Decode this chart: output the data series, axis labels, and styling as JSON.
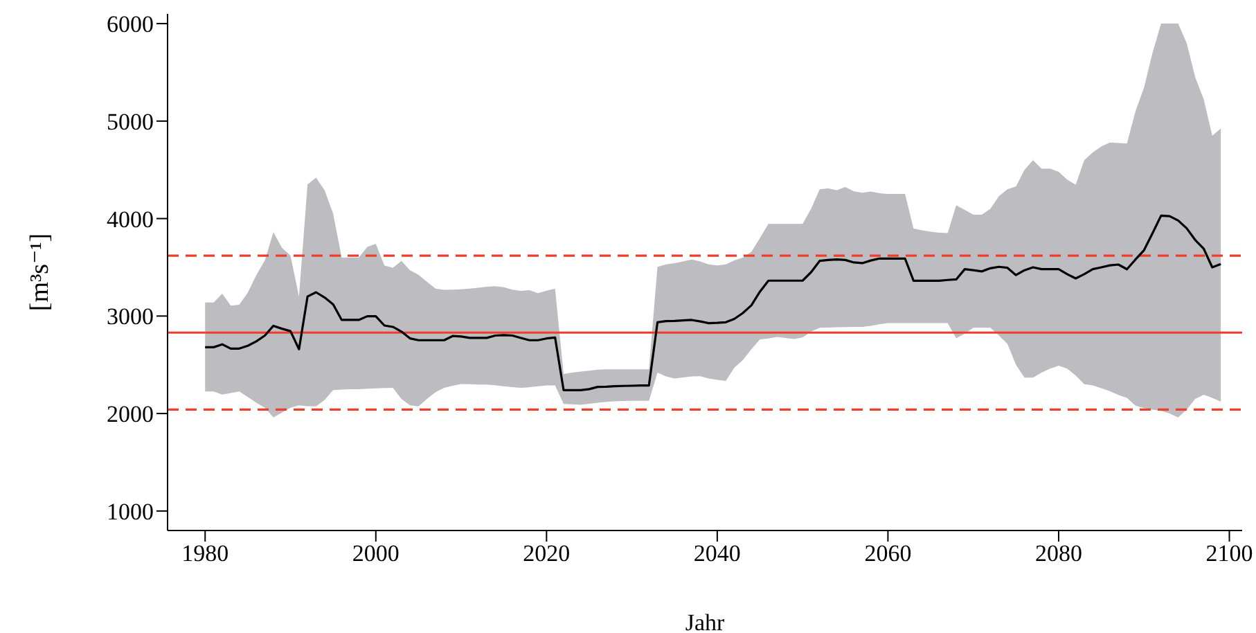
{
  "chart_data": {
    "type": "line",
    "xlabel": "Jahr",
    "ylabel": "[m³s⁻¹]",
    "x": [
      1980,
      1981,
      1982,
      1983,
      1984,
      1985,
      1986,
      1987,
      1988,
      1989,
      1990,
      1991,
      1992,
      1993,
      1994,
      1995,
      1996,
      1997,
      1998,
      1999,
      2000,
      2001,
      2002,
      2003,
      2004,
      2005,
      2006,
      2007,
      2008,
      2009,
      2010,
      2011,
      2012,
      2013,
      2014,
      2015,
      2016,
      2017,
      2018,
      2019,
      2020,
      2021,
      2022,
      2023,
      2024,
      2025,
      2026,
      2027,
      2028,
      2029,
      2030,
      2031,
      2032,
      2033,
      2034,
      2035,
      2036,
      2037,
      2038,
      2039,
      2040,
      2041,
      2042,
      2043,
      2044,
      2045,
      2046,
      2047,
      2048,
      2049,
      2050,
      2051,
      2052,
      2053,
      2054,
      2055,
      2056,
      2057,
      2058,
      2059,
      2060,
      2061,
      2062,
      2063,
      2064,
      2065,
      2066,
      2067,
      2068,
      2069,
      2070,
      2071,
      2072,
      2073,
      2074,
      2075,
      2076,
      2077,
      2078,
      2079,
      2080,
      2081,
      2082,
      2083,
      2084,
      2085,
      2086,
      2087,
      2088,
      2089,
      2090,
      2091,
      2092,
      2093,
      2094,
      2095,
      2096,
      2097,
      2098,
      2099
    ],
    "series": [
      {
        "color": "#000000",
        "values": [
          2680,
          2680,
          2710,
          2666,
          2666,
          2695,
          2740,
          2800,
          2900,
          2870,
          2845,
          2660,
          3200,
          3244,
          3190,
          3120,
          2960,
          2960,
          2960,
          2998,
          2998,
          2903,
          2889,
          2840,
          2771,
          2752,
          2752,
          2752,
          2752,
          2795,
          2790,
          2776,
          2776,
          2776,
          2800,
          2805,
          2800,
          2775,
          2752,
          2752,
          2770,
          2780,
          2240,
          2240,
          2240,
          2250,
          2273,
          2275,
          2280,
          2283,
          2285,
          2288,
          2288,
          2936,
          2948,
          2950,
          2955,
          2960,
          2945,
          2927,
          2930,
          2936,
          2970,
          3031,
          3110,
          3250,
          3363,
          3363,
          3363,
          3363,
          3363,
          3450,
          3566,
          3575,
          3580,
          3575,
          3550,
          3543,
          3570,
          3590,
          3590,
          3590,
          3590,
          3362,
          3362,
          3362,
          3362,
          3370,
          3376,
          3481,
          3470,
          3458,
          3490,
          3505,
          3495,
          3420,
          3470,
          3500,
          3481,
          3481,
          3481,
          3430,
          3386,
          3430,
          3481,
          3500,
          3520,
          3528,
          3480,
          3580,
          3675,
          3850,
          4030,
          4025,
          3980,
          3900,
          3780,
          3690,
          3500,
          3533
        ],
        "lower": [
          2226,
          2226,
          2195,
          2210,
          2226,
          2170,
          2110,
          2060,
          1960,
          2010,
          2060,
          2084,
          2075,
          2074,
          2140,
          2240,
          2245,
          2250,
          2250,
          2255,
          2258,
          2262,
          2264,
          2150,
          2084,
          2074,
          2150,
          2220,
          2264,
          2285,
          2302,
          2300,
          2298,
          2297,
          2290,
          2280,
          2270,
          2264,
          2270,
          2280,
          2288,
          2288,
          2098,
          2095,
          2090,
          2100,
          2110,
          2120,
          2125,
          2128,
          2130,
          2131,
          2131,
          2420,
          2380,
          2360,
          2370,
          2380,
          2382,
          2360,
          2345,
          2335,
          2470,
          2548,
          2660,
          2761,
          2770,
          2785,
          2775,
          2765,
          2780,
          2840,
          2880,
          2882,
          2885,
          2887,
          2888,
          2889,
          2900,
          2915,
          2927,
          2927,
          2927,
          2927,
          2927,
          2927,
          2927,
          2927,
          2771,
          2820,
          2880,
          2880,
          2880,
          2800,
          2714,
          2500,
          2368,
          2368,
          2420,
          2460,
          2490,
          2460,
          2390,
          2300,
          2288,
          2260,
          2230,
          2190,
          2160,
          2080,
          2055,
          2040,
          2027,
          2000,
          1960,
          2040,
          2150,
          2193,
          2160,
          2122
        ],
        "upper": [
          3140,
          3140,
          3230,
          3107,
          3116,
          3240,
          3420,
          3570,
          3860,
          3700,
          3620,
          3200,
          4350,
          4419,
          4290,
          4050,
          3600,
          3600,
          3600,
          3709,
          3742,
          3519,
          3495,
          3566,
          3470,
          3424,
          3350,
          3282,
          3268,
          3270,
          3275,
          3282,
          3290,
          3300,
          3306,
          3295,
          3270,
          3258,
          3265,
          3235,
          3260,
          3282,
          2406,
          2420,
          2430,
          2440,
          2450,
          2453,
          2453,
          2453,
          2453,
          2453,
          2453,
          3505,
          3530,
          3543,
          3560,
          3580,
          3560,
          3530,
          3520,
          3530,
          3570,
          3600,
          3660,
          3800,
          3946,
          3946,
          3946,
          3946,
          3946,
          4100,
          4300,
          4310,
          4290,
          4324,
          4280,
          4265,
          4277,
          4260,
          4253,
          4253,
          4253,
          3898,
          3880,
          3865,
          3855,
          3851,
          4135,
          4090,
          4040,
          4040,
          4100,
          4229,
          4300,
          4330,
          4500,
          4600,
          4513,
          4513,
          4480,
          4400,
          4347,
          4600,
          4679,
          4740,
          4780,
          4775,
          4770,
          5100,
          5343,
          5700,
          6000,
          6000,
          6000,
          5800,
          5450,
          5223,
          4850,
          4925
        ]
      }
    ],
    "xlim": [
      1975.6,
      2101.5
    ],
    "xticks": [
      1980,
      2000,
      2020,
      2040,
      2060,
      2080,
      2100
    ],
    "ylim": [
      800,
      6100
    ],
    "yticks": [
      1000,
      2000,
      3000,
      4000,
      5000,
      6000
    ],
    "ref_lines": [
      {
        "axis": "y",
        "value": 2830,
        "color": "#f03c28",
        "line_style": "solid"
      },
      {
        "axis": "y",
        "value": 3620,
        "color": "#f03c28",
        "line_style": "dashed"
      },
      {
        "axis": "y",
        "value": 2040,
        "color": "#f03c28",
        "line_style": "dashed"
      }
    ],
    "grid": false
  }
}
